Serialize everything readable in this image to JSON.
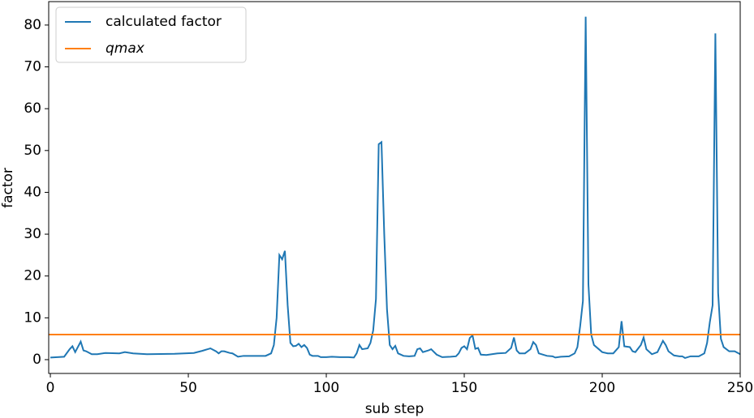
{
  "chart_data": {
    "type": "line",
    "xlabel": "sub step",
    "ylabel": "factor",
    "xlim": [
      -0.6,
      250
    ],
    "ylim": [
      -3.3,
      85.6
    ],
    "xticks": [
      0,
      50,
      100,
      150,
      200,
      250
    ],
    "yticks": [
      0,
      10,
      20,
      30,
      40,
      50,
      60,
      70,
      80
    ],
    "legend": "upper left",
    "series": [
      {
        "name": "calculated factor",
        "color": "#1f77b4",
        "x": [
          0,
          5,
          7,
          8,
          9,
          11,
          12,
          13,
          15,
          17,
          20,
          25,
          27,
          30,
          35,
          45,
          52,
          55,
          58,
          60,
          61,
          62,
          63,
          65,
          66,
          68,
          70,
          75,
          78,
          80,
          81,
          82,
          83,
          84,
          85,
          86,
          87,
          88,
          89,
          90,
          91,
          92,
          93,
          94,
          95,
          97,
          98,
          100,
          102,
          105,
          108,
          110,
          111,
          112,
          113,
          115,
          116,
          117,
          118,
          119,
          120,
          121,
          122,
          123,
          124,
          125,
          126,
          128,
          130,
          132,
          133,
          134,
          135,
          137,
          138,
          140,
          142,
          145,
          147,
          148,
          149,
          150,
          151,
          152,
          153,
          154,
          155,
          156,
          158,
          160,
          162,
          165,
          167,
          168,
          169,
          170,
          172,
          174,
          175,
          176,
          177,
          180,
          182,
          183,
          185,
          188,
          190,
          191,
          192,
          193,
          194,
          195,
          196,
          197,
          200,
          202,
          204,
          206,
          207,
          208,
          210,
          211,
          212,
          214,
          215,
          216,
          218,
          220,
          222,
          223,
          224,
          226,
          228,
          229,
          230,
          232,
          235,
          237,
          238,
          239,
          240,
          241,
          242,
          243,
          244,
          246,
          248,
          250
        ],
        "values": [
          0.5,
          0.7,
          2.5,
          3.2,
          1.8,
          4.3,
          2.2,
          2.0,
          1.3,
          1.3,
          1.6,
          1.5,
          1.8,
          1.5,
          1.3,
          1.4,
          1.6,
          2.1,
          2.7,
          2.0,
          1.5,
          2.0,
          2.0,
          1.6,
          1.5,
          0.7,
          0.9,
          0.9,
          0.9,
          1.5,
          3.5,
          10,
          25,
          24,
          26,
          13,
          4,
          3.2,
          3.3,
          3.8,
          3.0,
          3.5,
          2.8,
          1.2,
          0.9,
          0.9,
          0.6,
          0.6,
          0.7,
          0.6,
          0.6,
          0.5,
          1.5,
          3.5,
          2.5,
          2.7,
          4,
          7,
          14.5,
          51.5,
          52,
          30,
          12,
          3.5,
          2.5,
          3.3,
          1.5,
          0.9,
          0.8,
          0.9,
          2.5,
          2.7,
          1.8,
          2.2,
          2.5,
          1.2,
          0.6,
          0.7,
          0.8,
          1.5,
          2.8,
          3.2,
          2.5,
          5.2,
          5.8,
          2.6,
          2.8,
          1.2,
          1.1,
          1.3,
          1.5,
          1.6,
          2.8,
          5.3,
          2.2,
          1.5,
          1.5,
          2.5,
          4.2,
          3.5,
          1.5,
          0.9,
          0.8,
          0.5,
          0.7,
          0.8,
          1.5,
          3,
          8,
          14,
          82,
          18,
          6,
          3.5,
          1.8,
          1.5,
          1.5,
          3,
          9.2,
          3.2,
          3,
          2,
          1.8,
          3.5,
          5.3,
          2.5,
          1.3,
          1.8,
          4.5,
          3.5,
          2,
          1,
          0.8,
          0.8,
          0.4,
          0.8,
          0.8,
          1.5,
          4,
          9,
          13,
          78,
          16,
          5,
          3,
          2,
          2,
          1.3
        ]
      },
      {
        "name": "qmax",
        "color": "#ff7f0e",
        "x": [
          -0.6,
          250
        ],
        "values": [
          6,
          6
        ]
      }
    ]
  }
}
